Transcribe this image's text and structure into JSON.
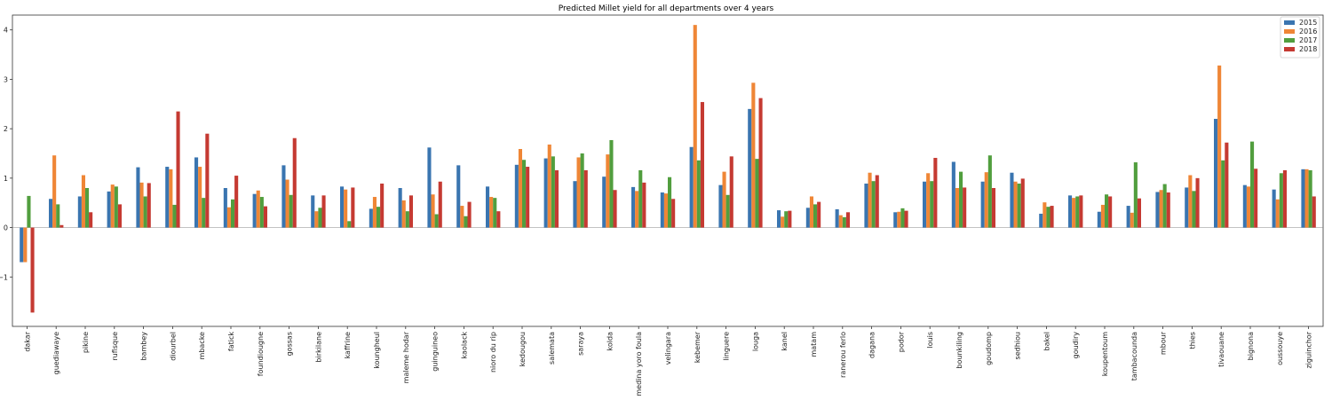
{
  "chart_data": {
    "type": "bar",
    "title": "Predicted Millet yield for all departments over 4 years",
    "xlabel": "",
    "ylabel": "",
    "ylim": [
      -2.0,
      4.3
    ],
    "yticks": [
      -1,
      0,
      1,
      2,
      3,
      4
    ],
    "ytick_labels": [
      "−1",
      "0",
      "1",
      "2",
      "3",
      "4"
    ],
    "grid": false,
    "legend_position": "top-right",
    "categories": [
      "dakar",
      "guediawaye",
      "pikine",
      "rufisque",
      "bambey",
      "diourbel",
      "mbacke",
      "fatick",
      "foundiougne",
      "gossas",
      "birkilane",
      "kaffrine",
      "koungheul",
      "maleme hodar",
      "guinguineo",
      "kaolack",
      "nioro du rip",
      "kedougou",
      "salemata",
      "saraya",
      "kolda",
      "medina yoro foula",
      "velingara",
      "kebemer",
      "linguere",
      "louga",
      "kanel",
      "matam",
      "ranerou ferlo",
      "dagana",
      "podor",
      "louis",
      "bounkiling",
      "goudomp",
      "sedhiou",
      "bakel",
      "goudiry",
      "koupentoum",
      "tambacounda",
      "mbour",
      "thies",
      "tivaouane",
      "bignona",
      "oussouye",
      "ziguinchor"
    ],
    "series": [
      {
        "name": "2015",
        "color": "#3a75b0",
        "values": [
          -0.7,
          0.58,
          0.63,
          0.73,
          1.22,
          1.23,
          1.42,
          0.8,
          0.68,
          1.26,
          0.65,
          0.83,
          0.38,
          0.8,
          1.62,
          1.26,
          0.83,
          1.27,
          1.4,
          0.94,
          1.03,
          0.82,
          0.71,
          1.63,
          0.86,
          2.4,
          0.35,
          0.4,
          0.37,
          0.89,
          0.31,
          0.93,
          1.33,
          0.93,
          1.11,
          0.28,
          0.65,
          0.32,
          0.44,
          0.72,
          0.81,
          2.2,
          0.86,
          0.77,
          1.18
        ]
      },
      {
        "name": "2016",
        "color": "#ef8636",
        "values": [
          -0.7,
          1.46,
          1.06,
          0.87,
          0.91,
          1.18,
          1.23,
          0.41,
          0.75,
          0.97,
          0.33,
          0.77,
          0.62,
          0.55,
          0.67,
          0.44,
          0.62,
          1.59,
          1.68,
          1.42,
          1.48,
          0.74,
          0.69,
          4.1,
          1.13,
          2.93,
          0.22,
          0.63,
          0.25,
          1.11,
          0.32,
          1.1,
          0.8,
          1.12,
          0.93,
          0.51,
          0.6,
          0.46,
          0.3,
          0.76,
          1.06,
          3.28,
          0.83,
          0.57,
          1.18
        ]
      },
      {
        "name": "2017",
        "color": "#519e3e",
        "values": [
          0.64,
          0.47,
          0.8,
          0.83,
          0.63,
          0.46,
          0.6,
          0.57,
          0.62,
          0.66,
          0.4,
          0.13,
          0.42,
          0.33,
          0.27,
          0.23,
          0.6,
          1.37,
          1.44,
          1.5,
          1.77,
          1.16,
          1.02,
          1.36,
          0.66,
          1.39,
          0.33,
          0.47,
          0.21,
          0.94,
          0.39,
          0.94,
          1.13,
          1.46,
          0.89,
          0.42,
          0.63,
          0.67,
          1.32,
          0.88,
          0.74,
          1.36,
          1.74,
          1.1,
          1.16
        ]
      },
      {
        "name": "2018",
        "color": "#c53a32",
        "values": [
          -1.72,
          0.05,
          0.31,
          0.47,
          0.9,
          2.35,
          1.9,
          1.05,
          0.43,
          1.81,
          0.65,
          0.81,
          0.89,
          0.65,
          0.93,
          0.52,
          0.33,
          1.23,
          1.16,
          1.16,
          0.76,
          0.91,
          0.58,
          2.54,
          1.44,
          2.62,
          0.34,
          0.52,
          0.31,
          1.06,
          0.34,
          1.41,
          0.81,
          0.8,
          0.99,
          0.44,
          0.65,
          0.63,
          0.59,
          0.71,
          1.0,
          1.72,
          1.19,
          1.16,
          0.63
        ]
      }
    ]
  }
}
